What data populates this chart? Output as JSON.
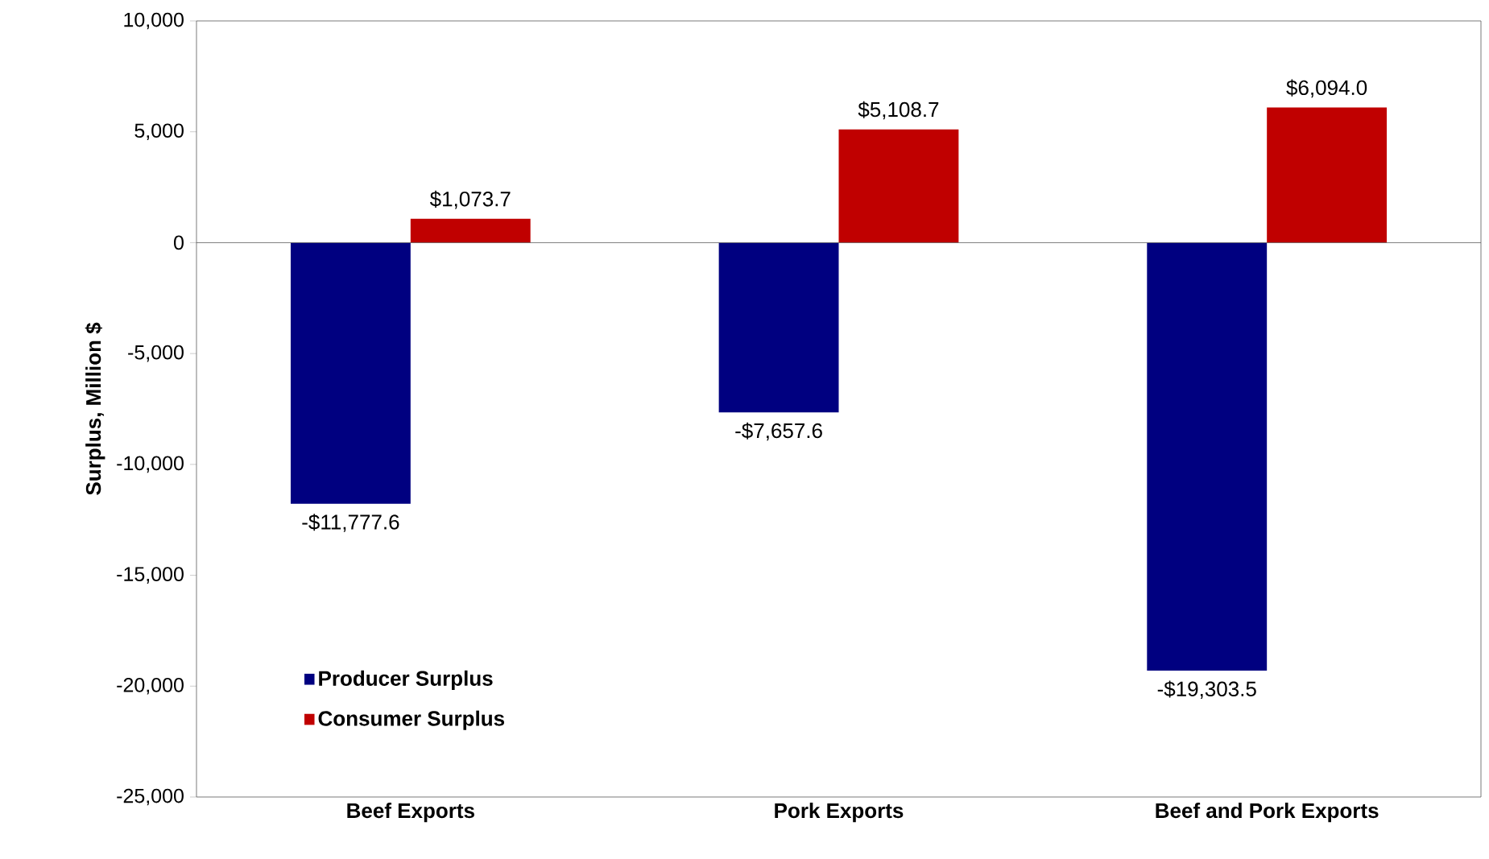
{
  "chart_data": {
    "type": "bar",
    "ylabel": "Surplus, Million $",
    "categories": [
      "Beef Exports",
      "Pork Exports",
      "Beef and Pork Exports"
    ],
    "series": [
      {
        "name": "Producer Surplus",
        "color": "#000080",
        "values": [
          -11777.6,
          -7657.6,
          -19303.5
        ],
        "value_labels": [
          "-$11,777.6",
          "-$7,657.6",
          "-$19,303.5"
        ]
      },
      {
        "name": "Consumer Surplus",
        "color": "#c00000",
        "values": [
          1073.7,
          5108.7,
          6094.0
        ],
        "value_labels": [
          "$1,073.7",
          "$5,108.7",
          "$6,094.0"
        ]
      }
    ],
    "ylim": [
      -25000,
      10000
    ],
    "yticks": [
      {
        "value": -25000,
        "label": "-25,000"
      },
      {
        "value": -20000,
        "label": "-20,000"
      },
      {
        "value": -15000,
        "label": "-15,000"
      },
      {
        "value": -10000,
        "label": "-10,000"
      },
      {
        "value": -5000,
        "label": "-5,000"
      },
      0,
      {
        "value": 5000,
        "label": "5,000"
      },
      {
        "value": 10000,
        "label": "10,000"
      }
    ],
    "ref_lines": [
      {
        "axis": "y",
        "value": 0,
        "color": "#595959"
      }
    ],
    "grid": false,
    "legend": "bottom left"
  }
}
